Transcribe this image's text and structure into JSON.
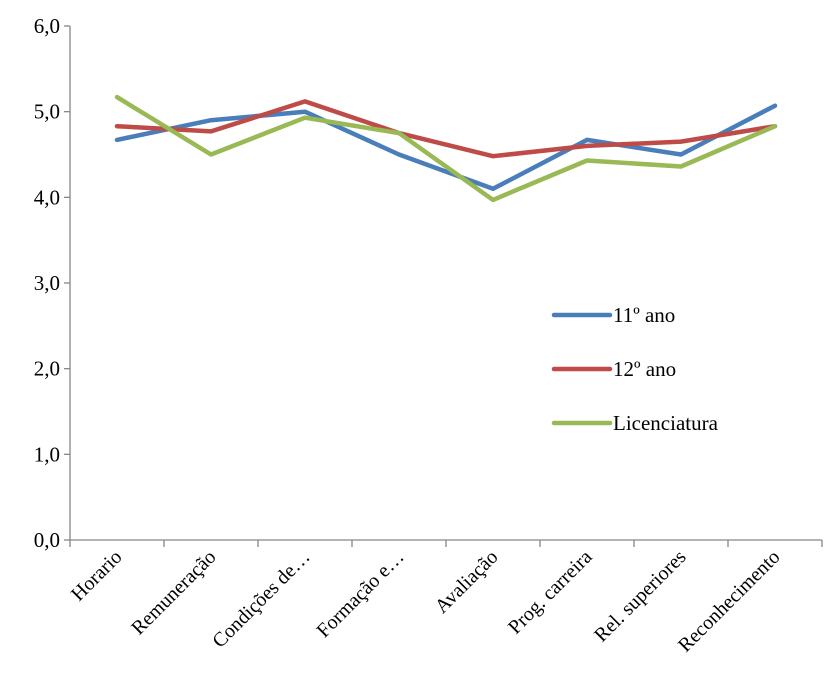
{
  "chart_data": {
    "type": "line",
    "title": "",
    "xlabel": "",
    "ylabel": "",
    "categories": [
      "Horario",
      "Remuneração",
      "Condições de…",
      "Formação e…",
      "Avaliação",
      "Prog. carreira",
      "Rel. superiores",
      "Reconhecimento"
    ],
    "y_ticks": [
      "0,0",
      "1,0",
      "2,0",
      "3,0",
      "4,0",
      "5,0",
      "6,0"
    ],
    "ylim": [
      0,
      6
    ],
    "grid": false,
    "legend_position": "right",
    "series": [
      {
        "name": "11º ano",
        "color": "#4a7ebb",
        "values": [
          4.67,
          4.9,
          5.0,
          4.5,
          4.1,
          4.67,
          4.5,
          5.07
        ]
      },
      {
        "name": "12º ano",
        "color": "#be4b48",
        "values": [
          4.83,
          4.77,
          5.12,
          4.75,
          4.48,
          4.6,
          4.65,
          4.83
        ]
      },
      {
        "name": "Licenciatura",
        "color": "#98b954",
        "values": [
          5.17,
          4.5,
          4.93,
          4.75,
          3.97,
          4.43,
          4.36,
          4.83
        ]
      }
    ]
  }
}
